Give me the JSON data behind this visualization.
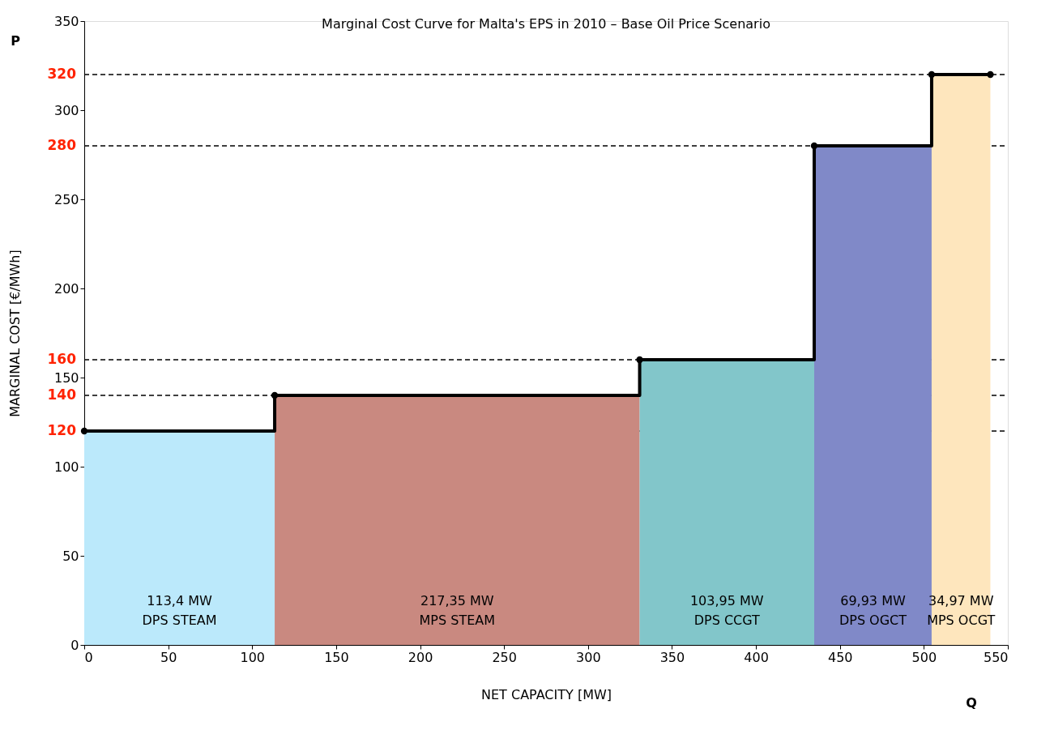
{
  "chart_data": {
    "type": "step",
    "title": "Marginal Cost Curve for Malta's EPS in 2010 – Base Oil Price Scenario",
    "xlabel": "NET CAPACITY [MW]",
    "ylabel": "MARGINAL COST [€/MWh]",
    "xlim": [
      0,
      550
    ],
    "xticks": [
      0,
      50,
      100,
      150,
      200,
      250,
      300,
      350,
      400,
      450,
      500,
      550
    ],
    "ylim": [
      0,
      350
    ],
    "yticks": [
      0,
      50,
      100,
      150,
      200,
      250,
      300,
      350
    ],
    "series": [
      {
        "type": "area",
        "color": "#bbe9fb",
        "x": [
          0,
          113.4
        ],
        "values": [
          120,
          120
        ]
      },
      {
        "type": "area",
        "color": "#c98980",
        "x": [
          113.4,
          330.75
        ],
        "values": [
          140,
          140
        ]
      },
      {
        "type": "area",
        "color": "#82c6ca",
        "x": [
          330.75,
          434.7
        ],
        "values": [
          160,
          160
        ]
      },
      {
        "type": "area",
        "color": "#8089c8",
        "x": [
          434.7,
          504.63
        ],
        "values": [
          280,
          280
        ]
      },
      {
        "type": "area",
        "color": "#fee6bd",
        "x": [
          504.63,
          539.6
        ],
        "values": [
          320,
          320
        ]
      },
      {
        "color": "#000000",
        "x": [
          0,
          113.4,
          330.75,
          434.7,
          504.63,
          539.6
        ],
        "values": [
          120,
          140,
          160,
          280,
          320,
          320
        ],
        "marker": "circle"
      }
    ],
    "ref_lines": [
      {
        "axis": "y",
        "value": 120,
        "label": "120",
        "color": "#000000",
        "line_style": "dashed"
      },
      {
        "axis": "y",
        "value": 140,
        "label": "140",
        "color": "#000000",
        "line_style": "dashed"
      },
      {
        "axis": "y",
        "value": 160,
        "label": "160",
        "color": "#000000",
        "line_style": "dashed"
      },
      {
        "axis": "y",
        "value": 280,
        "label": "280",
        "color": "#000000",
        "line_style": "dashed"
      },
      {
        "axis": "y",
        "value": 320,
        "label": "320",
        "color": "#000000",
        "line_style": "dashed"
      }
    ],
    "annotations": [
      "P",
      "Q",
      "113,4 MW\nDPS STEAM",
      "217,35 MW\nMPS STEAM",
      "103,95 MW\nDPS CCGT",
      "69,93 MW\nDPS OGCT",
      "34,97 MW\nMPS OCGT"
    ],
    "grid": false
  }
}
